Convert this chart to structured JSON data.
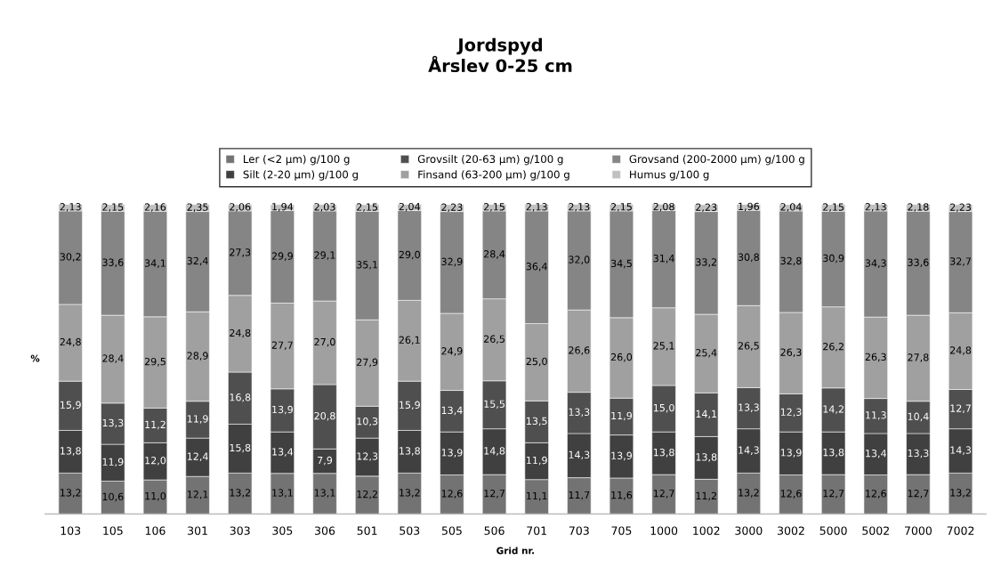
{
  "chart_data": {
    "type": "bar",
    "stacked": true,
    "title": "Jordspyd\nÅrslev 0-25 cm",
    "xlabel": "Grid nr.",
    "ylabel": "%",
    "categories": [
      "103",
      "105",
      "106",
      "301",
      "303",
      "305",
      "306",
      "501",
      "503",
      "505",
      "506",
      "701",
      "703",
      "705",
      "1000",
      "1002",
      "3000",
      "3002",
      "5000",
      "5002",
      "7000",
      "7002"
    ],
    "ylim": [
      0,
      100
    ],
    "tick_labels": "x",
    "legend": "top",
    "grid": false,
    "series": [
      {
        "name": "Ler (<2 µm) g/100 g",
        "color": "#737373",
        "values": [
          13.2,
          10.6,
          11.0,
          12.1,
          13.2,
          13.1,
          13.1,
          12.2,
          13.2,
          12.6,
          12.7,
          11.1,
          11.7,
          11.6,
          12.7,
          11.2,
          13.2,
          12.6,
          12.7,
          12.6,
          12.7,
          13.2
        ],
        "value_labels": [
          "13,2",
          "10,6",
          "11,0",
          "12,1",
          "13,2",
          "13,1",
          "13,1",
          "12,2",
          "13,2",
          "12,6",
          "12,7",
          "11,1",
          "11,7",
          "11,6",
          "12,7",
          "11,2",
          "13,2",
          "12,6",
          "12,7",
          "12,6",
          "12,7",
          "13,2"
        ]
      },
      {
        "name": "Silt (2-20 µm) g/100 g",
        "color": "#404040",
        "values": [
          13.8,
          11.9,
          12.0,
          12.4,
          15.8,
          13.4,
          7.9,
          12.3,
          13.8,
          13.9,
          14.8,
          11.9,
          14.3,
          13.9,
          13.8,
          13.8,
          14.3,
          13.9,
          13.8,
          13.4,
          13.3,
          14.3
        ],
        "value_labels": [
          "13,8",
          "11,9",
          "12,0",
          "12,4",
          "15,8",
          "13,4",
          "7,9",
          "12,3",
          "13,8",
          "13,9",
          "14,8",
          "11,9",
          "14,3",
          "13,9",
          "13,8",
          "13,8",
          "14,3",
          "13,9",
          "13,8",
          "13,4",
          "13,3",
          "14,3"
        ]
      },
      {
        "name": "Grovsilt (20-63 µm) g/100 g",
        "color": "#4f4f4f",
        "values": [
          15.9,
          13.3,
          11.2,
          11.9,
          16.8,
          13.9,
          20.8,
          10.3,
          15.9,
          13.4,
          15.5,
          13.5,
          13.3,
          11.9,
          15.0,
          14.1,
          13.3,
          12.3,
          14.2,
          11.3,
          10.4,
          12.7
        ],
        "value_labels": [
          "15,9",
          "13,3",
          "11,2",
          "11,9",
          "16,8",
          "13,9",
          "20,8",
          "10,3",
          "15,9",
          "13,4",
          "15,5",
          "13,5",
          "13,3",
          "11,9",
          "15,0",
          "14,1",
          "13,3",
          "12,3",
          "14,2",
          "11,3",
          "10,4",
          "12,7"
        ]
      },
      {
        "name": "Finsand (63-200 µm) g/100 g",
        "color": "#a0a0a0",
        "values": [
          24.8,
          28.4,
          29.5,
          28.9,
          24.8,
          27.7,
          27.0,
          27.9,
          26.1,
          24.9,
          26.5,
          25.0,
          26.6,
          26.0,
          25.1,
          25.4,
          26.5,
          26.3,
          26.2,
          26.3,
          27.8,
          24.8
        ],
        "value_labels": [
          "24,8",
          "28,4",
          "29,5",
          "28,9",
          "24,8",
          "27,7",
          "27,0",
          "27,9",
          "26,1",
          "24,9",
          "26,5",
          "25,0",
          "26,6",
          "26,0",
          "25,1",
          "25,4",
          "26,5",
          "26,3",
          "26,2",
          "26,3",
          "27,8",
          "24,8"
        ]
      },
      {
        "name": "Grovsand (200-2000 µm) g/100 g",
        "color": "#858585",
        "values": [
          30.2,
          33.6,
          34.1,
          32.4,
          27.3,
          29.9,
          29.1,
          35.1,
          29.0,
          32.9,
          28.4,
          36.4,
          32.0,
          34.5,
          31.4,
          33.2,
          30.8,
          32.8,
          30.9,
          34.3,
          33.6,
          32.7
        ],
        "value_labels": [
          "30,2",
          "33,6",
          "34,1",
          "32,4",
          "27,3",
          "29,9",
          "29,1",
          "35,1",
          "29,0",
          "32,9",
          "28,4",
          "36,4",
          "32,0",
          "34,5",
          "31,4",
          "33,2",
          "30,8",
          "32,8",
          "30,9",
          "34,3",
          "33,6",
          "32,7"
        ]
      },
      {
        "name": "Humus g/100 g",
        "color": "#c0c0c0",
        "values": [
          2.13,
          2.15,
          2.16,
          2.35,
          2.06,
          1.94,
          2.03,
          2.15,
          2.04,
          2.23,
          2.15,
          2.13,
          2.13,
          2.15,
          2.08,
          2.23,
          1.96,
          2.04,
          2.15,
          2.13,
          2.18,
          2.23
        ],
        "value_labels": [
          "2,13",
          "2,15",
          "2,16",
          "2,35",
          "2,06",
          "1,94",
          "2,03",
          "2,15",
          "2,04",
          "2,23",
          "2,15",
          "2,13",
          "2,13",
          "2,15",
          "2,08",
          "2,23",
          "1,96",
          "2,04",
          "2,15",
          "2,13",
          "2,18",
          "2,23"
        ]
      }
    ]
  }
}
